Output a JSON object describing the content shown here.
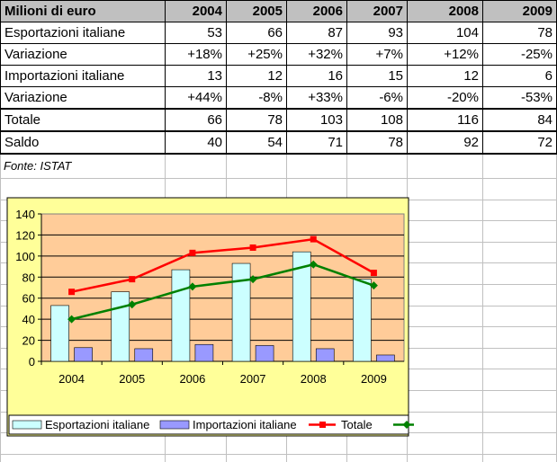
{
  "table": {
    "header": [
      "Milioni di euro",
      "2004",
      "2005",
      "2006",
      "2007",
      "2008",
      "2009"
    ],
    "rows": [
      {
        "label": "Esportazioni italiane",
        "cells": [
          "53",
          "66",
          "87",
          "93",
          "104",
          "78"
        ]
      },
      {
        "label": "Variazione",
        "cells": [
          "+18%",
          "+25%",
          "+32%",
          "+7%",
          "+12%",
          "-25%"
        ]
      },
      {
        "label": "Importazioni italiane",
        "cells": [
          "13",
          "12",
          "16",
          "15",
          "12",
          "6"
        ]
      },
      {
        "label": "Variazione",
        "cells": [
          "+44%",
          "-8%",
          "+33%",
          "-6%",
          "-20%",
          "-53%"
        ]
      },
      {
        "label": "Totale",
        "cells": [
          "66",
          "78",
          "103",
          "108",
          "116",
          "84"
        ]
      },
      {
        "label": "Saldo",
        "cells": [
          "40",
          "54",
          "71",
          "78",
          "92",
          "72"
        ]
      }
    ]
  },
  "source_note": "Fonte: ISTAT",
  "chart_data": {
    "type": "bar",
    "categories": [
      "2004",
      "2005",
      "2006",
      "2007",
      "2008",
      "2009"
    ],
    "series": [
      {
        "name": "Esportazioni italiane",
        "type": "bar",
        "values": [
          53,
          66,
          87,
          93,
          104,
          78
        ],
        "color": "#ccffff"
      },
      {
        "name": "Importazioni italiane",
        "type": "bar",
        "values": [
          13,
          12,
          16,
          15,
          12,
          6
        ],
        "color": "#9999ff"
      },
      {
        "name": "Totale",
        "type": "line",
        "values": [
          66,
          78,
          103,
          108,
          116,
          84
        ],
        "color": "#ff0000",
        "marker": "square"
      },
      {
        "name": "",
        "type": "line",
        "values": [
          40,
          54,
          71,
          78,
          92,
          72
        ],
        "color": "#008000",
        "marker": "diamond"
      }
    ],
    "title": "",
    "xlabel": "",
    "ylabel": "",
    "ylim": [
      0,
      140
    ],
    "yticks": [
      0,
      20,
      40,
      60,
      80,
      100,
      120,
      140
    ],
    "grid": true,
    "legend": "bottom",
    "plot_background": "#ffcc99",
    "chart_background": "#ffff99"
  }
}
